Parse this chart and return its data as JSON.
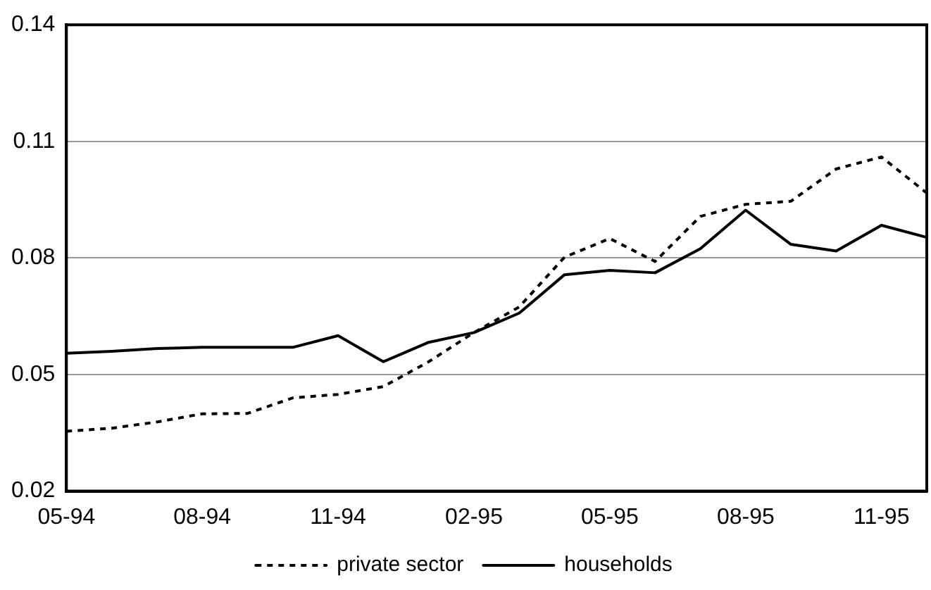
{
  "chart_data": {
    "type": "line",
    "categories": [
      "05-94",
      null,
      null,
      "08-94",
      null,
      null,
      "11-94",
      null,
      null,
      "02-95",
      null,
      null,
      "05-95",
      null,
      null,
      "08-95",
      null,
      null,
      "11-95",
      null
    ],
    "series": [
      {
        "name": "private sector",
        "color": "#000000",
        "line_style": "dotted",
        "values": [
          0.0354,
          0.0362,
          0.0378,
          0.0399,
          0.04,
          0.044,
          0.0449,
          0.0469,
          0.0533,
          0.0608,
          0.0674,
          0.0802,
          0.085,
          0.0791,
          0.0907,
          0.0938,
          0.0946,
          0.1029,
          0.106,
          0.0967
        ]
      },
      {
        "name": "households",
        "color": "#000000",
        "line_style": "solid",
        "values": [
          0.0555,
          0.056,
          0.0567,
          0.057,
          0.057,
          0.057,
          0.06,
          0.0533,
          0.0583,
          0.0608,
          0.0658,
          0.0757,
          0.0768,
          0.0762,
          0.0824,
          0.0923,
          0.0835,
          0.0818,
          0.0884,
          0.0853
        ]
      }
    ],
    "ylim": [
      0.02,
      0.14
    ],
    "yticks": [
      0.02,
      0.05,
      0.08,
      0.11,
      0.14
    ],
    "grid": "y",
    "legend": "bottom",
    "marker": "none"
  }
}
